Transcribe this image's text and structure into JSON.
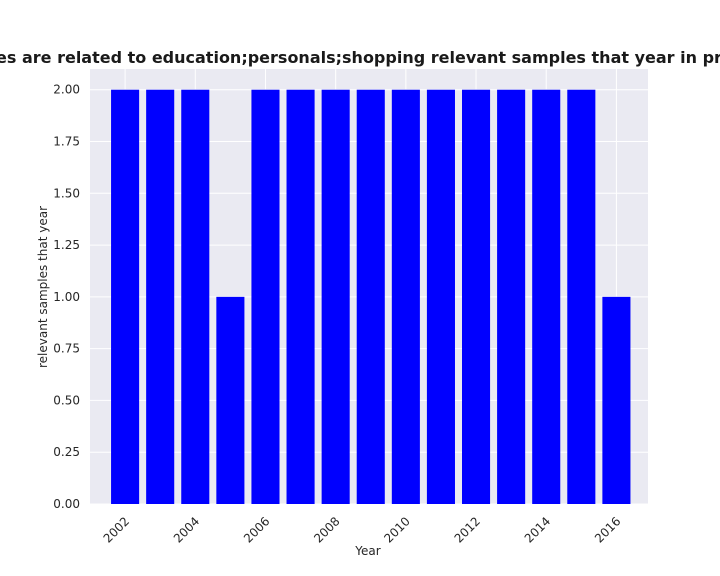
{
  "chart_data": {
    "type": "bar",
    "title": "Categories are related to education;personals;shopping relevant samples that year in privacy policies",
    "xlabel": "Year",
    "ylabel": "relevant samples that year",
    "categories": [
      2002,
      2003,
      2004,
      2005,
      2006,
      2007,
      2008,
      2009,
      2010,
      2011,
      2012,
      2013,
      2014,
      2015,
      2016
    ],
    "values": [
      2,
      2,
      2,
      1,
      2,
      2,
      2,
      2,
      2,
      2,
      2,
      2,
      2,
      2,
      1
    ],
    "xticks": [
      "2002",
      "2004",
      "2006",
      "2008",
      "2010",
      "2012",
      "2014",
      "2016"
    ],
    "yticks": [
      "0.00",
      "0.25",
      "0.50",
      "0.75",
      "1.00",
      "1.25",
      "1.50",
      "1.75",
      "2.00"
    ],
    "ylim": [
      0,
      2.1
    ],
    "xlim": [
      2001.0,
      2016.9
    ],
    "grid": true,
    "bar_color": "#0000ff",
    "plot_background": "#eaeaf2",
    "grid_color": "#ffffff"
  }
}
